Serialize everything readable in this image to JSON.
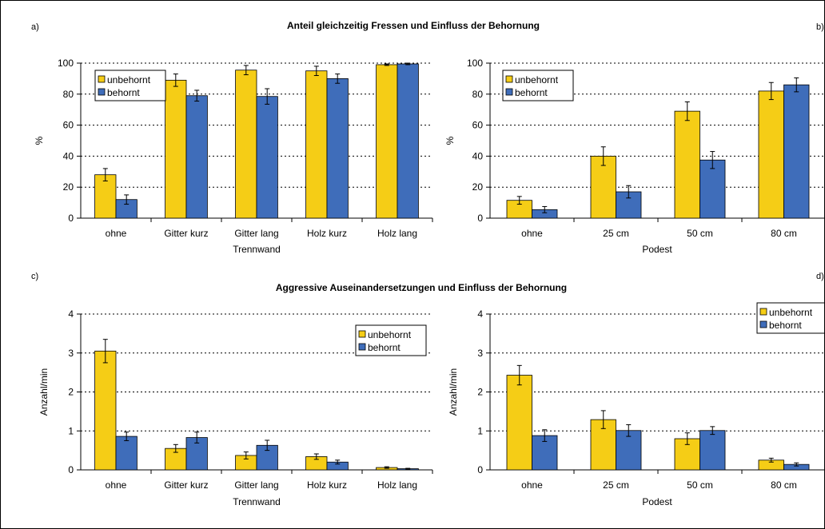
{
  "sections": {
    "top_title": "Anteil gleichzeitig Fressen und Einfluss der Behornung",
    "bottom_title": "Aggressive Auseinandersetzungen und Einfluss der Behornung"
  },
  "panel_labels": {
    "a": "a)",
    "b": "b)",
    "c": "c)",
    "d": "d)"
  },
  "colors": {
    "unbehornt": "#f5cd16",
    "behornt": "#3f6dba",
    "error": "#000000"
  },
  "chart_data": [
    {
      "id": "a",
      "type": "bar",
      "title": "",
      "xlabel": "Trennwand",
      "ylabel": "%",
      "ylim": [
        0,
        100
      ],
      "yticks": [
        "0",
        "20",
        "40",
        "60",
        "80",
        "100"
      ],
      "categories": [
        "ohne",
        "Gitter kurz",
        "Gitter lang",
        "Holz kurz",
        "Holz lang"
      ],
      "grid": true,
      "legend": "top-left",
      "series": [
        {
          "name": "unbehornt",
          "values": [
            28,
            89,
            95.5,
            95,
            99
          ],
          "errors": [
            4,
            4,
            3,
            3,
            0.5
          ]
        },
        {
          "name": "behornt",
          "values": [
            12,
            79,
            78.5,
            90,
            99.5
          ],
          "errors": [
            3,
            3.5,
            5,
            3,
            0.5
          ]
        }
      ]
    },
    {
      "id": "b",
      "type": "bar",
      "title": "",
      "xlabel": "Podest",
      "ylabel": "%",
      "ylim": [
        0,
        100
      ],
      "yticks": [
        "0",
        "20",
        "40",
        "60",
        "80",
        "100"
      ],
      "categories": [
        "ohne",
        "25 cm",
        "50 cm",
        "80 cm"
      ],
      "grid": true,
      "legend": "top-left",
      "series": [
        {
          "name": "unbehornt",
          "values": [
            11.5,
            40,
            69,
            82
          ],
          "errors": [
            2.5,
            6,
            6,
            5.5
          ]
        },
        {
          "name": "behornt",
          "values": [
            5.5,
            17,
            37.5,
            86
          ],
          "errors": [
            2,
            4,
            5.5,
            4.5
          ]
        }
      ]
    },
    {
      "id": "c",
      "type": "bar",
      "title": "",
      "xlabel": "Trennwand",
      "ylabel": "Anzahl/min",
      "ylim": [
        0,
        4
      ],
      "yticks": [
        "0",
        "1",
        "2",
        "3",
        "4"
      ],
      "categories": [
        "ohne",
        "Gitter kurz",
        "Gitter lang",
        "Holz kurz",
        "Holz lang"
      ],
      "grid": true,
      "legend": "top-right",
      "series": [
        {
          "name": "unbehornt",
          "values": [
            3.05,
            0.55,
            0.37,
            0.34,
            0.06
          ],
          "errors": [
            0.3,
            0.1,
            0.09,
            0.07,
            0.02
          ]
        },
        {
          "name": "behornt",
          "values": [
            0.86,
            0.83,
            0.63,
            0.2,
            0.03
          ],
          "errors": [
            0.11,
            0.14,
            0.13,
            0.05,
            0.01
          ]
        }
      ]
    },
    {
      "id": "d",
      "type": "bar",
      "title": "",
      "xlabel": "Podest",
      "ylabel": "Anzahl/min",
      "ylim": [
        0,
        4
      ],
      "yticks": [
        "0",
        "1",
        "2",
        "3",
        "4"
      ],
      "categories": [
        "ohne",
        "25 cm",
        "50 cm",
        "80 cm"
      ],
      "grid": true,
      "legend": "top-right",
      "series": [
        {
          "name": "unbehornt",
          "values": [
            2.43,
            1.29,
            0.8,
            0.25
          ],
          "errors": [
            0.25,
            0.23,
            0.15,
            0.05
          ]
        },
        {
          "name": "behornt",
          "values": [
            0.88,
            1.01,
            1.01,
            0.14
          ],
          "errors": [
            0.15,
            0.15,
            0.1,
            0.04
          ]
        }
      ]
    }
  ]
}
